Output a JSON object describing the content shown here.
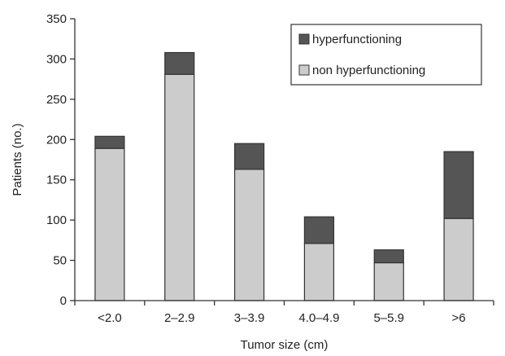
{
  "chart_data": {
    "type": "bar",
    "stacked": true,
    "categories": [
      "<2.0",
      "2–2.9",
      "3–3.9",
      "4.0–4.9",
      "5–5.9",
      ">6"
    ],
    "series": [
      {
        "name": "non hyperfunctioning",
        "values": [
          189,
          281,
          163,
          71,
          47,
          102
        ],
        "color": "#cccccc"
      },
      {
        "name": "hyperfunctioning",
        "values": [
          15,
          27,
          32,
          33,
          16,
          83
        ],
        "color": "#555555"
      }
    ],
    "legend_order": [
      1,
      0
    ],
    "xlabel": "Tumor size (cm)",
    "ylabel": "Patients (no.)",
    "ylim": [
      0,
      350
    ],
    "yticks": [
      0,
      50,
      100,
      150,
      200,
      250,
      300,
      350
    ],
    "grid": false,
    "legend_position": "top-right"
  }
}
